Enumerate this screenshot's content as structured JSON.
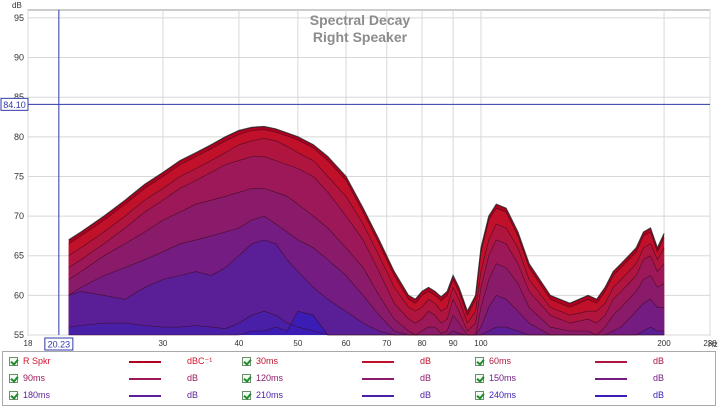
{
  "chart_data": {
    "type": "area",
    "title": "Spectral Decay",
    "subtitle": "Right Speaker",
    "ylabel": "dB",
    "xlabel": "Hz",
    "x_scale": "log",
    "xlim": [
      18,
      238
    ],
    "ylim": [
      55,
      96
    ],
    "grid": true,
    "x_ticks": [
      18,
      30,
      40,
      50,
      60,
      70,
      80,
      90,
      100,
      200,
      238
    ],
    "x_tick_labels": [
      "18",
      "30",
      "40",
      "50",
      "60",
      "70",
      "80",
      "90",
      "100",
      "200",
      "238"
    ],
    "x_minor_ticks": [
      20,
      200
    ],
    "y_ticks": [
      55,
      60,
      65,
      70,
      75,
      80,
      85,
      90,
      95
    ],
    "y_tick_labels": [
      "55",
      "60",
      "65",
      "70",
      "75",
      "80",
      "85",
      "90",
      "95"
    ],
    "cursor": {
      "x": 20.23,
      "y": 84.1,
      "x_label": "20.23",
      "y_label": "84.10"
    },
    "x": [
      21,
      22,
      24,
      26,
      28,
      30,
      32,
      34,
      36,
      38,
      40,
      42,
      44,
      46,
      48,
      50,
      53,
      56,
      60,
      64,
      68,
      72,
      76,
      78,
      80,
      82,
      84,
      86,
      88,
      90,
      92,
      95,
      98,
      100,
      103,
      106,
      110,
      115,
      120,
      130,
      140,
      150,
      155,
      160,
      165,
      170,
      175,
      180,
      185,
      190,
      195,
      200
    ],
    "series": [
      {
        "name": "R Spkr",
        "unit": "dBC⁻¹",
        "color": "#b00020",
        "values": [
          67,
          68,
          70,
          72,
          74,
          75.5,
          77,
          78,
          79,
          80,
          80.8,
          81.2,
          81.3,
          81,
          80.5,
          80,
          79,
          77.5,
          75,
          71,
          67,
          63,
          60,
          59.5,
          60.5,
          61,
          60.5,
          59.8,
          60.5,
          62.5,
          61,
          58,
          60,
          66,
          70,
          71.5,
          71,
          68,
          64,
          60,
          59,
          60,
          59.5,
          61,
          63,
          64,
          65,
          66,
          68,
          68.5,
          66,
          67.8
        ]
      },
      {
        "name": "30ms",
        "unit": "dB",
        "color": "#c0102a",
        "values": [
          66.5,
          67.5,
          69.5,
          71.5,
          73.5,
          75,
          76.5,
          77.5,
          78.5,
          79.5,
          80.3,
          80.8,
          80.9,
          80.6,
          80.1,
          79.6,
          78.6,
          77,
          74.5,
          70.5,
          66.5,
          62.5,
          59.5,
          59,
          60,
          60.5,
          60,
          59.3,
          60,
          62,
          60.5,
          57.5,
          59.5,
          65.5,
          69.5,
          71,
          70.5,
          67.5,
          63.5,
          59.5,
          58.5,
          59.5,
          59,
          60.5,
          62.5,
          63.5,
          64.5,
          65.5,
          67.5,
          68,
          65.5,
          67.3
        ]
      },
      {
        "name": "60ms",
        "unit": "dB",
        "color": "#b01540",
        "values": [
          65,
          66,
          68,
          70,
          72,
          73.5,
          75,
          76,
          77,
          78,
          79,
          79.5,
          79.8,
          79.5,
          78.8,
          78,
          77,
          75,
          72.5,
          69,
          65,
          61,
          58.5,
          58,
          58.5,
          59.5,
          59,
          58,
          58.5,
          61,
          59.5,
          56.5,
          58,
          63,
          67,
          69,
          68.5,
          66,
          62,
          58.5,
          57.5,
          58,
          58,
          59,
          61,
          62,
          63,
          64,
          66,
          66.5,
          64.5,
          66
        ]
      },
      {
        "name": "90ms",
        "unit": "dB",
        "color": "#9c1858",
        "values": [
          63.5,
          64.5,
          66.5,
          68.5,
          70.5,
          72,
          73.5,
          74.5,
          75.5,
          76.5,
          77,
          77.5,
          77.5,
          77,
          76.5,
          76,
          75,
          73,
          70,
          67,
          63,
          59,
          57,
          56.5,
          57,
          58,
          57.5,
          56.5,
          57,
          59.5,
          58,
          55.5,
          56.5,
          61,
          65,
          67,
          66.5,
          64,
          60.5,
          57.5,
          56.5,
          57,
          56.5,
          57.5,
          59.5,
          60.5,
          61.5,
          62.5,
          64.5,
          65,
          63,
          64
        ]
      },
      {
        "name": "120ms",
        "unit": "dB",
        "color": "#8a1a6a",
        "values": [
          62,
          63,
          65,
          66.5,
          68,
          69.5,
          70.5,
          71.5,
          72,
          72.5,
          73,
          73.5,
          73.5,
          73,
          72.5,
          71.5,
          70,
          68.5,
          66,
          63.5,
          60,
          57,
          55.5,
          55,
          55.5,
          56,
          56,
          55.2,
          55.5,
          57.5,
          56.5,
          55,
          55,
          58.5,
          62,
          64,
          63.5,
          61.5,
          58.5,
          56,
          55.5,
          55.5,
          55,
          56,
          57.5,
          58.5,
          59.5,
          60.5,
          62,
          62.5,
          61,
          61.5
        ]
      },
      {
        "name": "150ms",
        "unit": "dB",
        "color": "#741c82",
        "values": [
          60,
          61,
          62.5,
          63.5,
          64.5,
          65.5,
          66.5,
          67,
          67.5,
          68,
          68.5,
          69.5,
          70,
          69,
          68,
          67,
          66,
          64.5,
          62.5,
          60,
          57.5,
          55.5,
          55,
          55,
          55,
          55,
          55,
          55,
          55,
          55.5,
          55.2,
          55,
          55,
          56,
          58.5,
          60,
          59.5,
          58,
          56.5,
          55,
          55,
          55,
          55,
          55,
          55.5,
          56,
          57,
          58,
          59,
          59.5,
          58.5,
          58.5
        ]
      },
      {
        "name": "180ms",
        "unit": "dB",
        "color": "#5a1e96",
        "values": [
          60,
          60.5,
          60,
          59.5,
          61,
          62,
          62.5,
          63,
          62.5,
          63.5,
          65,
          66.5,
          67,
          66.5,
          64.5,
          63,
          61,
          59.5,
          58,
          56.5,
          55.5,
          55,
          55,
          55,
          55,
          55,
          55,
          55,
          55,
          55,
          55,
          55,
          55,
          55,
          55.5,
          56,
          56,
          55.5,
          55,
          55,
          55,
          55,
          55,
          55,
          55,
          55,
          55,
          55,
          55.5,
          56,
          55.5,
          55.5
        ]
      },
      {
        "name": "210ms",
        "unit": "dB",
        "color": "#4a1fa8",
        "values": [
          56,
          56.2,
          56.5,
          56.5,
          56.2,
          56,
          56,
          56.2,
          56,
          55.8,
          56.5,
          57.5,
          58,
          57.5,
          56.5,
          56,
          55.5,
          55,
          55,
          55,
          55,
          55,
          55,
          55,
          55,
          55,
          55,
          55,
          55,
          55,
          55,
          55,
          55,
          55,
          55,
          55,
          55,
          55,
          55,
          55,
          55,
          55,
          55,
          55,
          55,
          55,
          55,
          55,
          55,
          55,
          55,
          55
        ]
      },
      {
        "name": "240ms",
        "unit": "dB",
        "color": "#3b1cb4",
        "values": [
          55,
          55,
          55,
          55,
          55,
          55,
          55,
          55,
          55,
          55,
          55,
          55.5,
          55.5,
          56,
          55.5,
          58,
          57.5,
          55,
          55,
          55,
          55,
          55,
          55,
          55,
          55,
          55,
          55,
          55,
          55,
          55,
          55,
          55,
          55,
          55,
          55,
          55,
          55,
          55,
          55,
          55,
          55,
          55,
          55,
          55,
          55,
          55,
          55,
          55,
          55,
          55,
          55,
          55
        ]
      }
    ]
  }
}
